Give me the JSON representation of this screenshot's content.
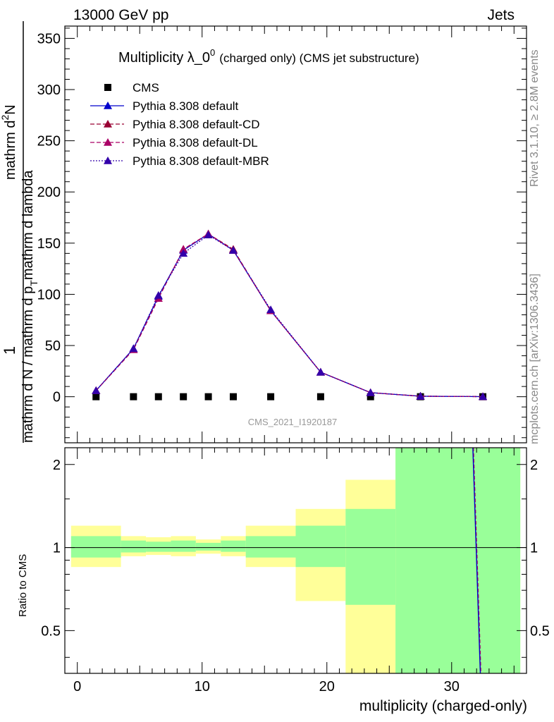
{
  "header": {
    "left_label": "13000 GeV pp",
    "right_label": "Jets",
    "side_label_top": "Rivet 3.1.10, ≥ 2.8M events",
    "side_label_bottom": "mcplots.cern.ch [arXiv:1306.3436]",
    "watermark": "CMS_2021_I1920187"
  },
  "colors": {
    "cms": "#000000",
    "default": "#0000cc",
    "default_cd": "#990033",
    "default_dl": "#aa0066",
    "default_mbr": "#3300aa",
    "band_inner": "#99ff99",
    "band_outer": "#ffff99"
  },
  "chart_data": [
    {
      "type": "line",
      "title": "Multiplicity λ_0",
      "title_sup": "0",
      "title_suffix": "(charged only) (CMS jet substructure)",
      "ylabel_main": "mathrm d N / mathrm d p",
      "ylabel_sub": "T",
      "ylabel_tail": "mathrm d lambda",
      "ylabel_prefix": "1",
      "ylabel_num": "mathrm d",
      "ylabel_num_sup": "2",
      "ylabel_num_tail": "N",
      "ylim": [
        -45,
        362
      ],
      "xlim": [
        -1,
        36
      ],
      "yticks": [
        0,
        50,
        100,
        150,
        200,
        250,
        300,
        350
      ],
      "legend_position": "top-left",
      "series": [
        {
          "name": "CMS",
          "style": "square",
          "x": [
            1.5,
            4.5,
            6.5,
            8.5,
            10.5,
            12.5,
            15.5,
            19.5,
            23.5,
            27.5,
            32.5
          ],
          "y": [
            0,
            0,
            0,
            0,
            0,
            0,
            0,
            0,
            0,
            0,
            0
          ]
        },
        {
          "name": "Pythia 8.308 default",
          "style": "solid",
          "x": [
            1.5,
            4.5,
            6.5,
            8.5,
            10.5,
            12.5,
            15.5,
            19.5,
            23.5,
            27.5,
            32.5
          ],
          "y": [
            6,
            47,
            98,
            143,
            159,
            143,
            84,
            24,
            4,
            0.5,
            0.1
          ]
        },
        {
          "name": "Pythia 8.308 default-CD",
          "style": "dashed",
          "x": [
            1.5,
            4.5,
            6.5,
            8.5,
            10.5,
            12.5,
            15.5,
            19.5,
            23.5,
            27.5,
            32.5
          ],
          "y": [
            6,
            46,
            96,
            144,
            159,
            144,
            84,
            24,
            4,
            0.5,
            0.1
          ]
        },
        {
          "name": "Pythia 8.308 default-DL",
          "style": "dashed",
          "x": [
            1.5,
            4.5,
            6.5,
            8.5,
            10.5,
            12.5,
            15.5,
            19.5,
            23.5,
            27.5,
            32.5
          ],
          "y": [
            6,
            46,
            96,
            144,
            159,
            143,
            84,
            24,
            4,
            0.5,
            0.1
          ]
        },
        {
          "name": "Pythia 8.308 default-MBR",
          "style": "dotted",
          "x": [
            1.5,
            4.5,
            6.5,
            8.5,
            10.5,
            12.5,
            15.5,
            19.5,
            23.5,
            27.5,
            32.5
          ],
          "y": [
            6,
            47,
            99,
            140,
            158,
            143,
            85,
            24,
            4,
            0.5,
            0.1
          ]
        }
      ]
    },
    {
      "type": "area",
      "ylabel": "Ratio to CMS",
      "xlabel": "multiplicity (charged-only)",
      "ylim": [
        0.35,
        2.3
      ],
      "xlim": [
        -1,
        36
      ],
      "yticks": [
        0.5,
        1,
        2
      ],
      "xticks": [
        0,
        10,
        20,
        30
      ],
      "bins": [
        {
          "lo": -0.5,
          "hi": 3.5,
          "inner": [
            0.92,
            1.1
          ],
          "outer": [
            0.85,
            1.2
          ]
        },
        {
          "lo": 3.5,
          "hi": 5.5,
          "inner": [
            0.96,
            1.06
          ],
          "outer": [
            0.93,
            1.1
          ]
        },
        {
          "lo": 5.5,
          "hi": 7.5,
          "inner": [
            0.965,
            1.05
          ],
          "outer": [
            0.94,
            1.09
          ]
        },
        {
          "lo": 7.5,
          "hi": 9.5,
          "inner": [
            0.965,
            1.06
          ],
          "outer": [
            0.93,
            1.1
          ]
        },
        {
          "lo": 9.5,
          "hi": 11.5,
          "inner": [
            0.975,
            1.04
          ],
          "outer": [
            0.95,
            1.07
          ]
        },
        {
          "lo": 11.5,
          "hi": 13.5,
          "inner": [
            0.965,
            1.06
          ],
          "outer": [
            0.93,
            1.1
          ]
        },
        {
          "lo": 13.5,
          "hi": 17.5,
          "inner": [
            0.92,
            1.1
          ],
          "outer": [
            0.85,
            1.2
          ]
        },
        {
          "lo": 17.5,
          "hi": 21.5,
          "inner": [
            0.85,
            1.2
          ],
          "outer": [
            0.64,
            1.38
          ]
        },
        {
          "lo": 21.5,
          "hi": 25.5,
          "inner": [
            0.62,
            1.38
          ],
          "outer": [
            0.35,
            1.76
          ]
        },
        {
          "lo": 25.5,
          "hi": 35.5,
          "inner": [
            0.35,
            2.3
          ],
          "outer": [
            0.35,
            2.3
          ]
        }
      ],
      "ratio_line": {
        "x": [
          31.7,
          32.3
        ],
        "y": [
          2.3,
          0.35
        ]
      }
    }
  ]
}
